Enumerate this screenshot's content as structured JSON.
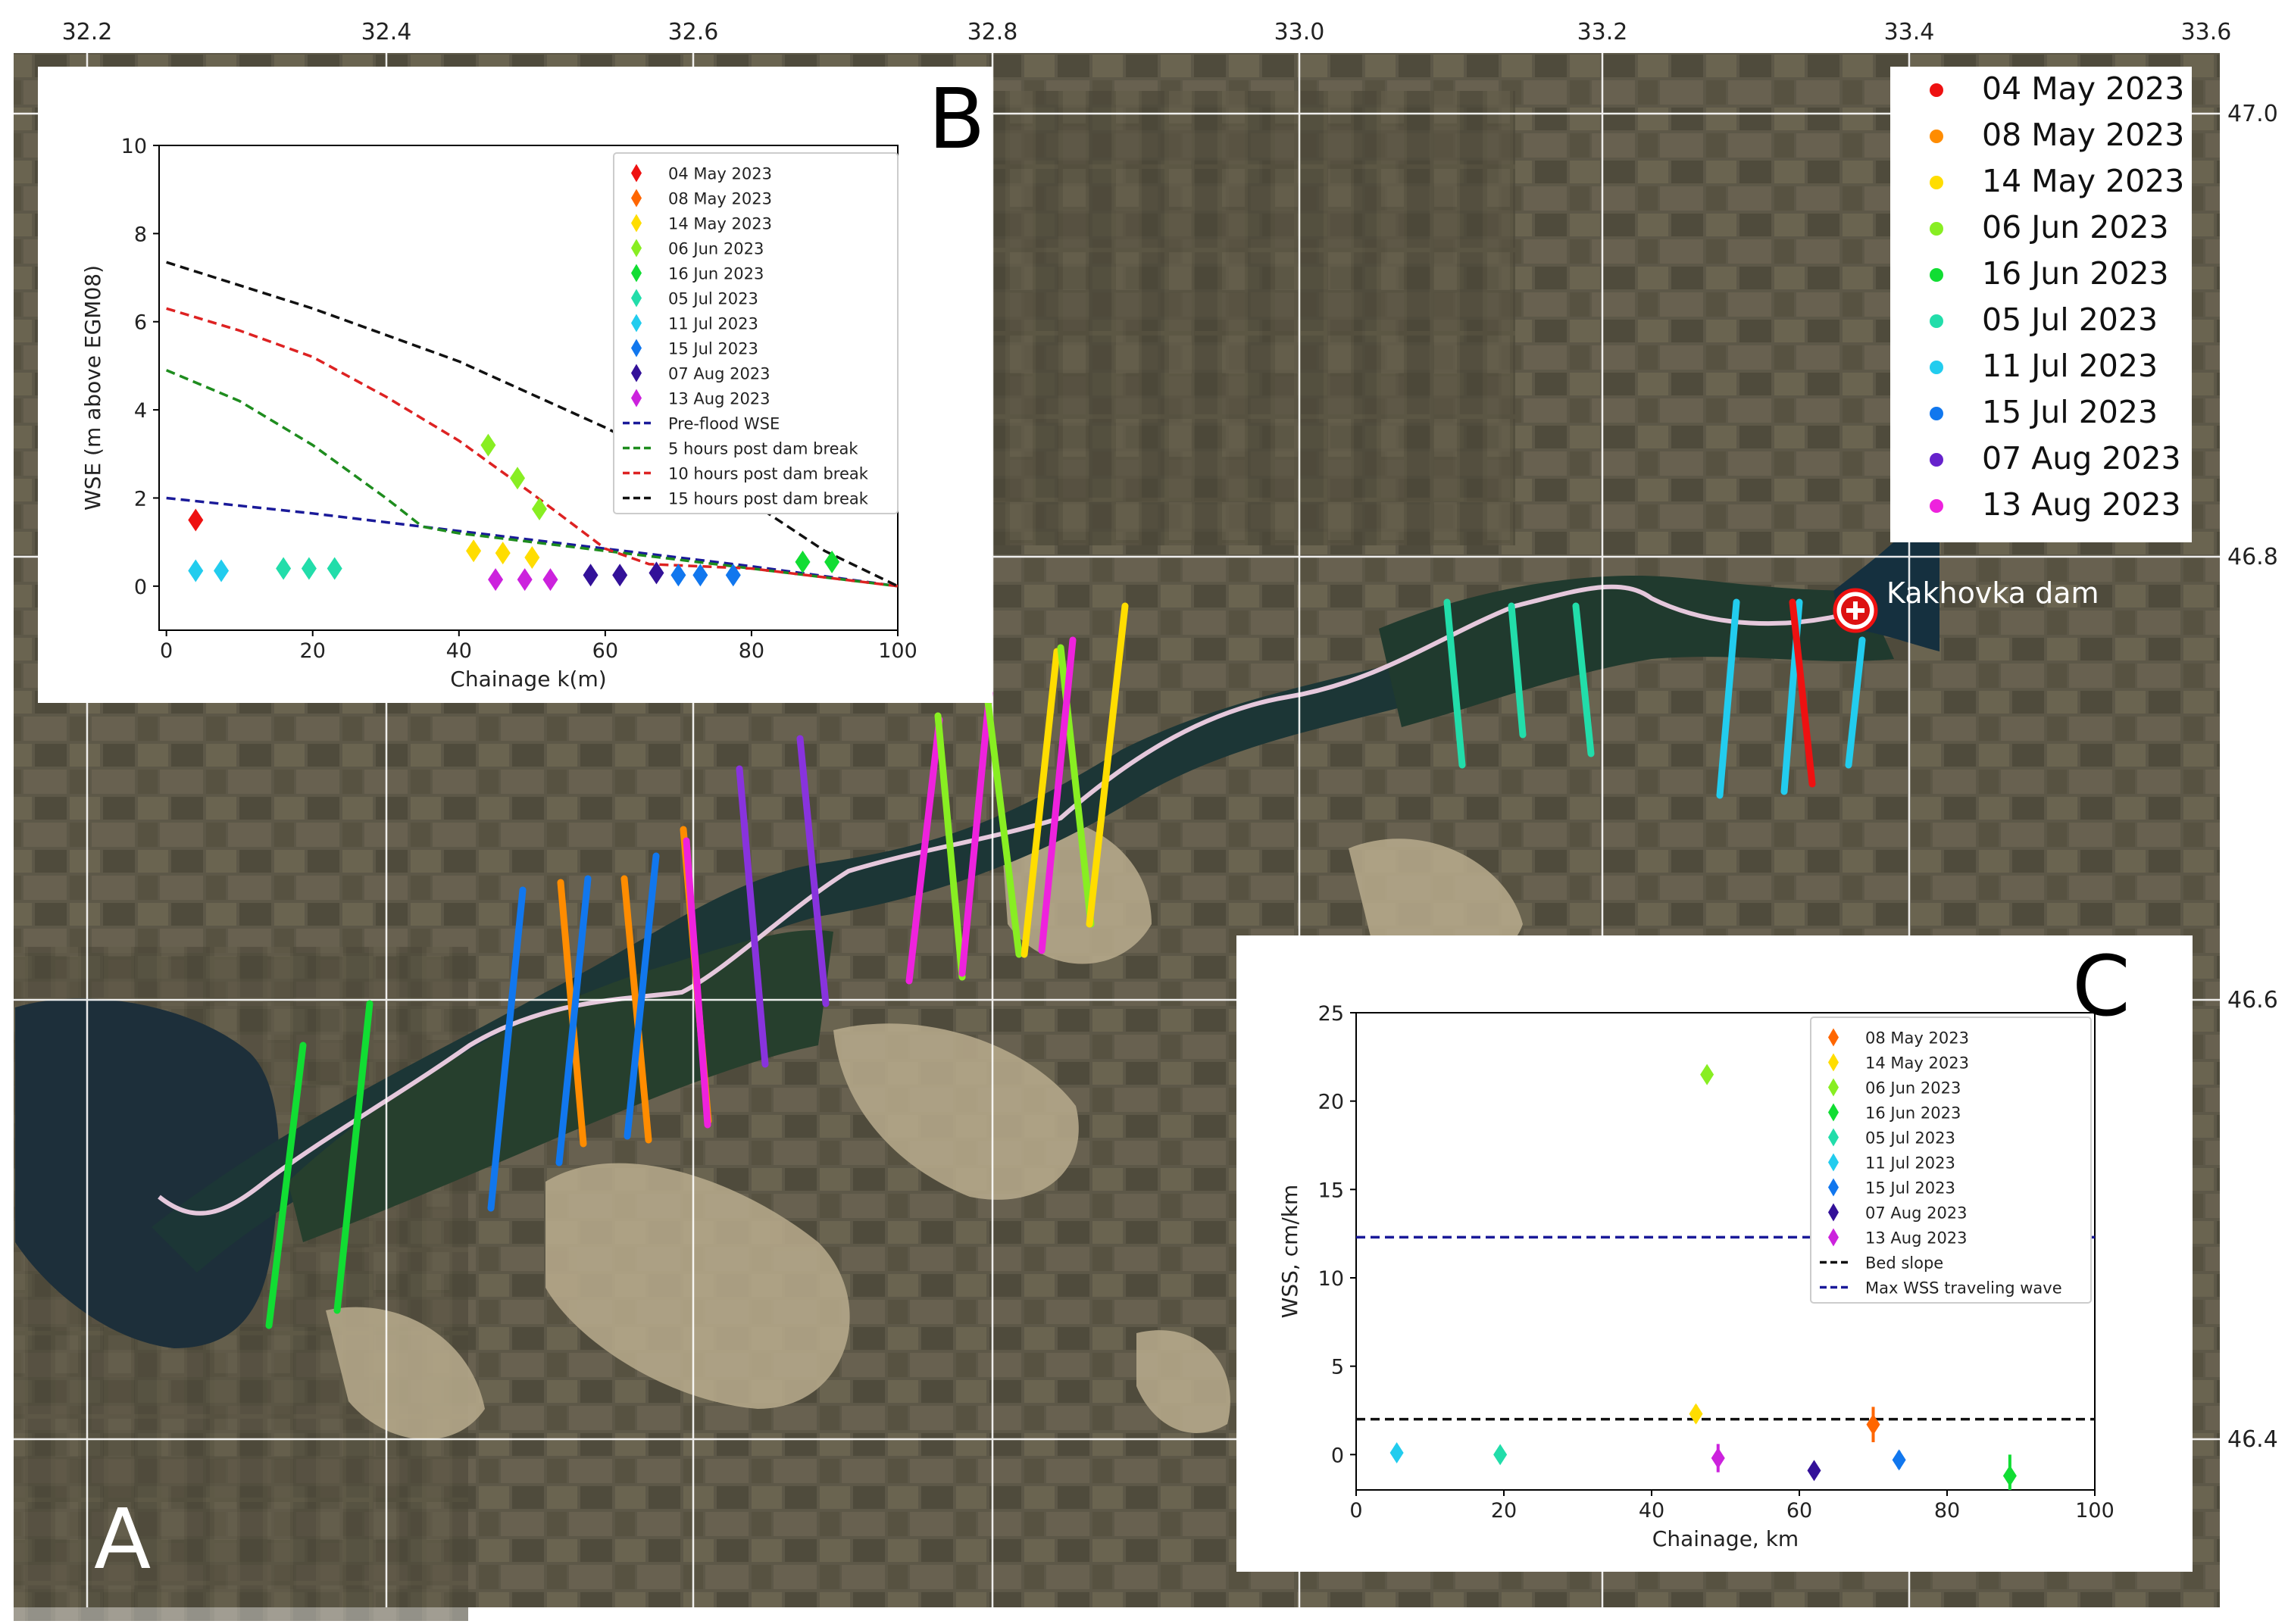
{
  "map": {
    "panel_letter": "A",
    "top_ticks": [
      "32.2",
      "32.4",
      "32.6",
      "32.8",
      "33.0",
      "33.2",
      "33.4",
      "33.6"
    ],
    "right_ticks": [
      "47.0",
      "46.8",
      "46.6",
      "46.4"
    ],
    "dam_label": "Kakhovka dam",
    "legend": [
      {
        "label": "04 May 2023",
        "color": "#ee1111"
      },
      {
        "label": "08 May 2023",
        "color": "#ff8c00"
      },
      {
        "label": "14 May 2023",
        "color": "#ffdd00"
      },
      {
        "label": "06 Jun 2023",
        "color": "#88ee22"
      },
      {
        "label": "16 Jun 2023",
        "color": "#11dd33"
      },
      {
        "label": "05 Jul 2023",
        "color": "#22ddaa"
      },
      {
        "label": "11 Jul 2023",
        "color": "#22ccee"
      },
      {
        "label": "15 Jul 2023",
        "color": "#1177ee"
      },
      {
        "label": "07 Aug 2023",
        "color": "#6622cc"
      },
      {
        "label": "13 Aug 2023",
        "color": "#ee22dd"
      }
    ]
  },
  "chart_data": [
    {
      "panel": "B",
      "type": "scatter",
      "xlabel": "Chainage k(m)",
      "ylabel": "WSE (m above EGM08)",
      "xlim": [
        -1,
        100
      ],
      "ylim": [
        -1,
        10
      ],
      "x_ticks": [
        "0",
        "20",
        "40",
        "60",
        "80",
        "100"
      ],
      "y_ticks": [
        "0",
        "2",
        "4",
        "6",
        "8",
        "10"
      ],
      "series": [
        {
          "name": "04 May 2023",
          "color": "#ee1111",
          "x": [
            4
          ],
          "y": [
            1.5
          ]
        },
        {
          "name": "08 May 2023",
          "color": "#ff6600",
          "x": [],
          "y": []
        },
        {
          "name": "14 May 2023",
          "color": "#ffdd00",
          "x": [
            42,
            46,
            50
          ],
          "y": [
            0.8,
            0.75,
            0.65
          ]
        },
        {
          "name": "06 Jun 2023",
          "color": "#88ee22",
          "x": [
            44,
            48,
            51
          ],
          "y": [
            3.2,
            2.45,
            1.75
          ]
        },
        {
          "name": "16 Jun 2023",
          "color": "#11dd33",
          "x": [
            87,
            91
          ],
          "y": [
            0.55,
            0.55
          ]
        },
        {
          "name": "05 Jul 2023",
          "color": "#22ddaa",
          "x": [
            16,
            19.5,
            23
          ],
          "y": [
            0.4,
            0.4,
            0.4
          ]
        },
        {
          "name": "11 Jul 2023",
          "color": "#22ccee",
          "x": [
            4,
            7.5
          ],
          "y": [
            0.35,
            0.35
          ]
        },
        {
          "name": "15 Jul 2023",
          "color": "#1177ee",
          "x": [
            70,
            73,
            77.5
          ],
          "y": [
            0.25,
            0.25,
            0.25
          ]
        },
        {
          "name": "07 Aug 2023",
          "color": "#331199",
          "x": [
            58,
            62,
            67
          ],
          "y": [
            0.25,
            0.25,
            0.3
          ]
        },
        {
          "name": "13 Aug 2023",
          "color": "#cc22dd",
          "x": [
            45,
            49,
            52.5
          ],
          "y": [
            0.15,
            0.15,
            0.15
          ]
        }
      ],
      "lines": [
        {
          "name": "Pre-flood WSE",
          "color": "#1a1a99",
          "x": [
            0,
            20,
            40,
            60,
            80,
            100
          ],
          "y": [
            2.0,
            1.65,
            1.25,
            0.85,
            0.45,
            0.0
          ]
        },
        {
          "name": "5 hours post dam break",
          "color": "#1e8c1e",
          "x": [
            0,
            10,
            20,
            30,
            35,
            40,
            60,
            80,
            100
          ],
          "y": [
            4.9,
            4.2,
            3.2,
            2.0,
            1.35,
            1.2,
            0.8,
            0.4,
            0.0
          ]
        },
        {
          "name": "10 hours post dam break",
          "color": "#dd2222",
          "x": [
            0,
            10,
            20,
            30,
            40,
            50,
            60,
            66,
            80,
            100
          ],
          "y": [
            6.3,
            5.8,
            5.2,
            4.3,
            3.3,
            2.1,
            0.85,
            0.5,
            0.4,
            0.0
          ]
        },
        {
          "name": "15 hours post dam break",
          "color": "#111111",
          "x": [
            0,
            20,
            40,
            60,
            80,
            90,
            100
          ],
          "y": [
            7.35,
            6.3,
            5.1,
            3.6,
            1.9,
            0.8,
            0.0
          ]
        }
      ],
      "legend": [
        "04 May 2023",
        "08 May 2023",
        "14 May 2023",
        "06 Jun 2023",
        "16 Jun 2023",
        "05 Jul 2023",
        "11 Jul 2023",
        "15 Jul 2023",
        "07 Aug 2023",
        "13 Aug 2023",
        "Pre-flood WSE",
        "5 hours post dam break",
        "10 hours post dam break",
        "15 hours post dam break"
      ]
    },
    {
      "panel": "C",
      "type": "scatter",
      "xlabel": "Chainage, km",
      "ylabel": "WSS, cm/km",
      "xlim": [
        0,
        100
      ],
      "ylim": [
        -2,
        25
      ],
      "x_ticks": [
        "0",
        "20",
        "40",
        "60",
        "80",
        "100"
      ],
      "y_ticks": [
        "0",
        "5",
        "10",
        "15",
        "20",
        "25"
      ],
      "series": [
        {
          "name": "08 May 2023",
          "color": "#ff6600",
          "x": [
            70
          ],
          "y": [
            1.7
          ],
          "err": [
            1.0
          ]
        },
        {
          "name": "14 May 2023",
          "color": "#ffdd00",
          "x": [
            46
          ],
          "y": [
            2.3
          ],
          "err": [
            0.5
          ]
        },
        {
          "name": "06 Jun 2023",
          "color": "#88ee22",
          "x": [
            47.5
          ],
          "y": [
            21.5
          ],
          "err": [
            0.4
          ]
        },
        {
          "name": "16 Jun 2023",
          "color": "#11dd33",
          "x": [
            88.5
          ],
          "y": [
            -1.2
          ],
          "err": [
            1.2
          ]
        },
        {
          "name": "05 Jul 2023",
          "color": "#22ddaa",
          "x": [
            19.5
          ],
          "y": [
            0
          ],
          "err": [
            0.3
          ]
        },
        {
          "name": "11 Jul 2023",
          "color": "#22ccee",
          "x": [
            5.5
          ],
          "y": [
            0.1
          ],
          "err": [
            0.3
          ]
        },
        {
          "name": "15 Jul 2023",
          "color": "#1177ee",
          "x": [
            73.5
          ],
          "y": [
            -0.3
          ],
          "err": [
            0.5
          ]
        },
        {
          "name": "07 Aug 2023",
          "color": "#331199",
          "x": [
            62
          ],
          "y": [
            -0.9
          ],
          "err": [
            0.3
          ]
        },
        {
          "name": "13 Aug 2023",
          "color": "#cc22dd",
          "x": [
            49
          ],
          "y": [
            -0.2
          ],
          "err": [
            0.8
          ]
        }
      ],
      "lines": [
        {
          "name": "Bed slope",
          "color": "#111111",
          "y": 2.0
        },
        {
          "name": "Max WSS traveling wave",
          "color": "#1a1a99",
          "y": 12.3
        }
      ],
      "legend": [
        "08 May 2023",
        "14 May 2023",
        "06 Jun 2023",
        "16 Jun 2023",
        "05 Jul 2023",
        "11 Jul 2023",
        "15 Jul 2023",
        "07 Aug 2023",
        "13 Aug 2023",
        "Bed slope",
        "Max WSS traveling wave"
      ]
    }
  ]
}
